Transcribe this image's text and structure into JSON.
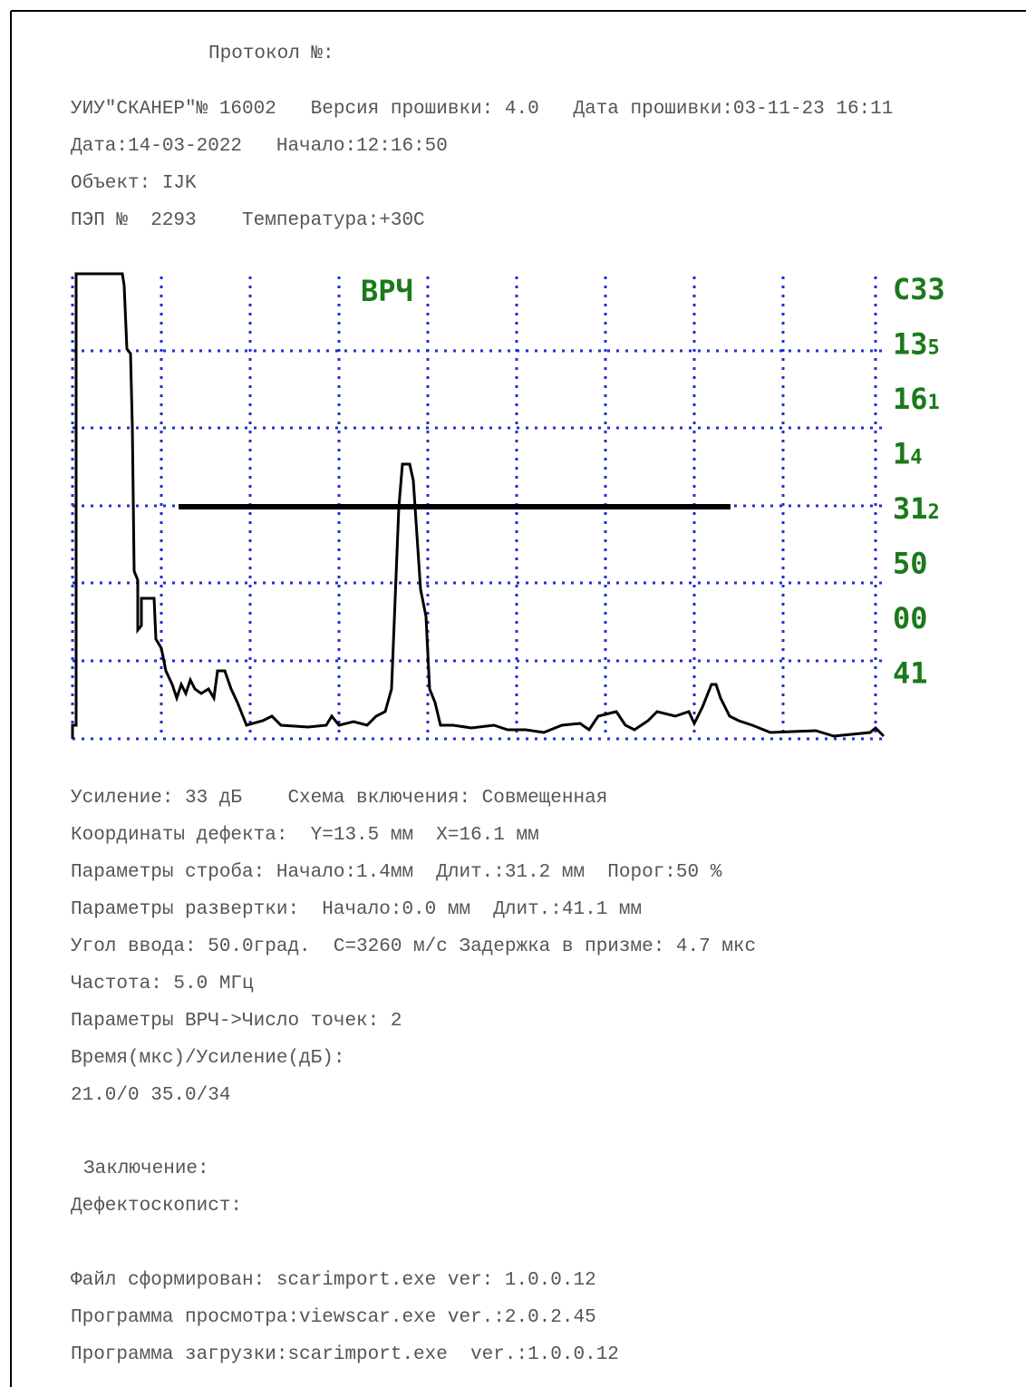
{
  "header": {
    "protocol": "Протокол №:",
    "lines": [
      "УИУ\"СКАНЕР\"№ 16002   Версия прошивки: 4.0   Дата прошивки:03-11-23 16:11",
      "Дата:14-03-2022   Начало:12:16:50",
      "Объект: IJK",
      "ПЭП №  2293    Температура:+30C"
    ]
  },
  "scan": {
    "title": "ВРЧ",
    "side_labels": [
      {
        "main": "C33",
        "sub": ""
      },
      {
        "main": "13",
        "sub": "5"
      },
      {
        "main": "16",
        "sub": "1"
      },
      {
        "main": "1",
        "sub": "4"
      },
      {
        "main": "31",
        "sub": "2"
      },
      {
        "main": "50",
        "sub": ""
      },
      {
        "main": "00",
        "sub": ""
      },
      {
        "main": "41",
        "sub": ""
      }
    ]
  },
  "params": [
    "Усиление: 33 дБ    Схема включения: Совмещенная",
    "Координаты дефекта:  Y=13.5 мм  X=16.1 мм",
    "Параметры строба: Начало:1.4мм  Длит.:31.2 мм  Порог:50 %",
    "Параметры развертки:  Начало:0.0 мм  Длит.:41.1 мм",
    "Угол ввода: 50.0град.  C=3260 м/с Задержка в призме: 4.7 мкс",
    "Частота: 5.0 МГц",
    "Параметры ВРЧ->Число точек: 2",
    "Время(мкс)/Усиление(дБ):",
    "21.0/0 35.0/34"
  ],
  "conclusion": "Заключение:",
  "operator": "Дефектоскопист:",
  "footer": [
    "Файл сформирован: scarimport.exe ver: 1.0.0.12",
    "Программа просмотра:viewscar.exe ver.:2.0.2.45",
    "Программа загрузки:scarimport.exe  ver.:1.0.0.12"
  ]
}
